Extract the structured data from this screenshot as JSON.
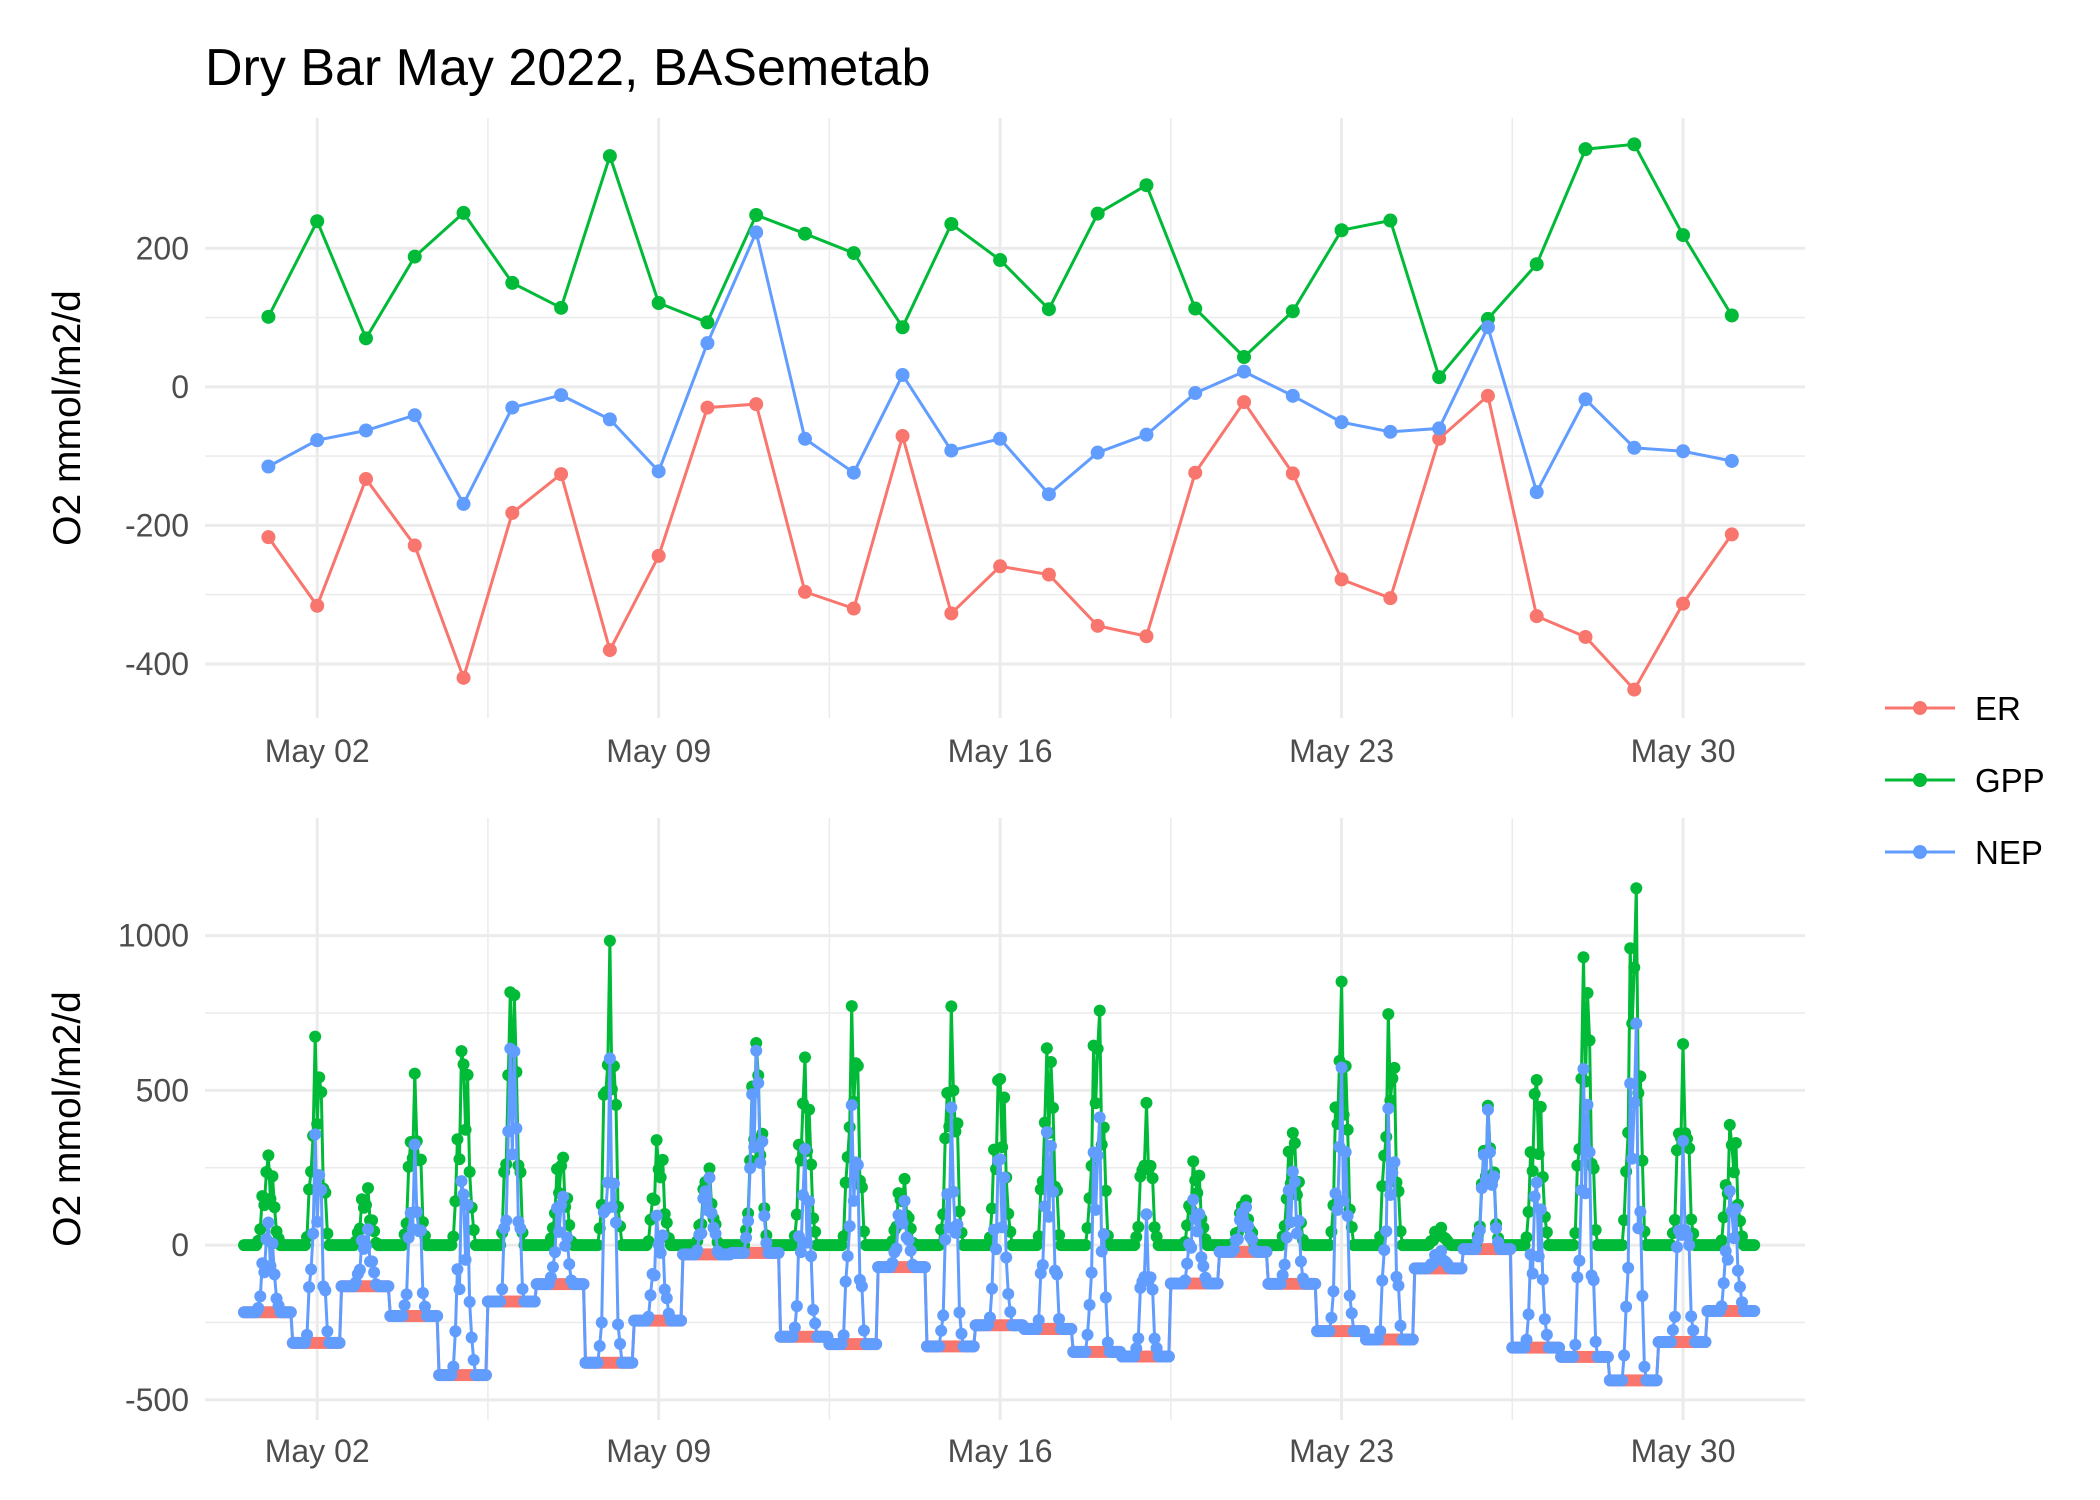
{
  "title": "Dry Bar May 2022, BASemetab",
  "colors": {
    "ER": "#F8766D",
    "GPP": "#00BA38",
    "NEP": "#619CFF",
    "grid": "#ebebeb"
  },
  "legend": {
    "placement": "right",
    "entries": [
      "ER",
      "GPP",
      "NEP"
    ]
  },
  "chart_data": [
    {
      "type": "line",
      "xlabel": "",
      "ylabel": "O2 mmol/m2/d",
      "x_ticks": [
        "May 02",
        "May 09",
        "May 16",
        "May 23",
        "May 30"
      ],
      "y_ticks": [
        "-400",
        "-200",
        "0",
        "200"
      ],
      "x_ticks_day": [
        2,
        9,
        16,
        23,
        30
      ],
      "y_ticks_value": [
        -400,
        -200,
        0,
        200
      ],
      "xlim_day": [
        -0.3,
        32.5
      ],
      "ylim": [
        -478,
        388
      ],
      "grid": true,
      "x_day": [
        1,
        2,
        3,
        4,
        5,
        6,
        7,
        8,
        9,
        10,
        11,
        12,
        13,
        14,
        15,
        16,
        17,
        18,
        19,
        20,
        21,
        22,
        23,
        24,
        25,
        26,
        27,
        28,
        29,
        30,
        31
      ],
      "series": [
        {
          "name": "ER",
          "values": [
            -217,
            -316,
            -133,
            -229,
            -420,
            -182,
            -126,
            -380,
            -244,
            -30,
            -25,
            -296,
            -320,
            -71,
            -327,
            -259,
            -271,
            -345,
            -360,
            -124,
            -22,
            -125,
            -278,
            -305,
            -75,
            -13,
            -331,
            -361,
            -437,
            -313,
            -213
          ]
        },
        {
          "name": "GPP",
          "values": [
            101,
            239,
            70,
            188,
            251,
            150,
            114,
            333,
            121,
            93,
            248,
            221,
            193,
            86,
            235,
            183,
            112,
            250,
            291,
            113,
            43,
            109,
            226,
            240,
            14,
            98,
            177,
            343,
            350,
            219,
            103
          ]
        },
        {
          "name": "NEP",
          "values": [
            -115,
            -77,
            -63,
            -41,
            -169,
            -30,
            -12,
            -47,
            -122,
            63,
            223,
            -75,
            -124,
            17,
            -92,
            -75,
            -155,
            -95,
            -69,
            -9,
            22,
            -13,
            -51,
            -65,
            -60,
            86,
            -152,
            -18,
            -88,
            -93,
            -107
          ]
        }
      ]
    },
    {
      "type": "line",
      "xlabel": "",
      "ylabel": "O2 mmol/m2/d",
      "x_ticks": [
        "May 02",
        "May 09",
        "May 16",
        "May 23",
        "May 30"
      ],
      "y_ticks": [
        "-500",
        "0",
        "500",
        "1000"
      ],
      "x_ticks_day": [
        2,
        9,
        16,
        23,
        30
      ],
      "y_ticks_value": [
        -500,
        0,
        500,
        1000
      ],
      "xlim_day": [
        -0.3,
        32.5
      ],
      "ylim": [
        -565,
        1380
      ],
      "grid": true,
      "resolution": "30-minute",
      "daily_ER": [
        -217,
        -316,
        -133,
        -229,
        -420,
        -182,
        -126,
        -380,
        -244,
        -30,
        -25,
        -296,
        -320,
        -71,
        -327,
        -259,
        -271,
        -345,
        -360,
        -124,
        -22,
        -125,
        -278,
        -305,
        -75,
        -13,
        -331,
        -361,
        -437,
        -313,
        -213
      ],
      "daily_GPP_peak": [
        320,
        730,
        200,
        560,
        740,
        950,
        330,
        990,
        370,
        270,
        730,
        650,
        830,
        230,
        790,
        650,
        720,
        860,
        460,
        300,
        160,
        420,
        890,
        800,
        60,
        470,
        620,
        1030,
        1280,
        650,
        440
      ],
      "series_names": [
        "ER",
        "GPP",
        "NEP"
      ]
    }
  ]
}
